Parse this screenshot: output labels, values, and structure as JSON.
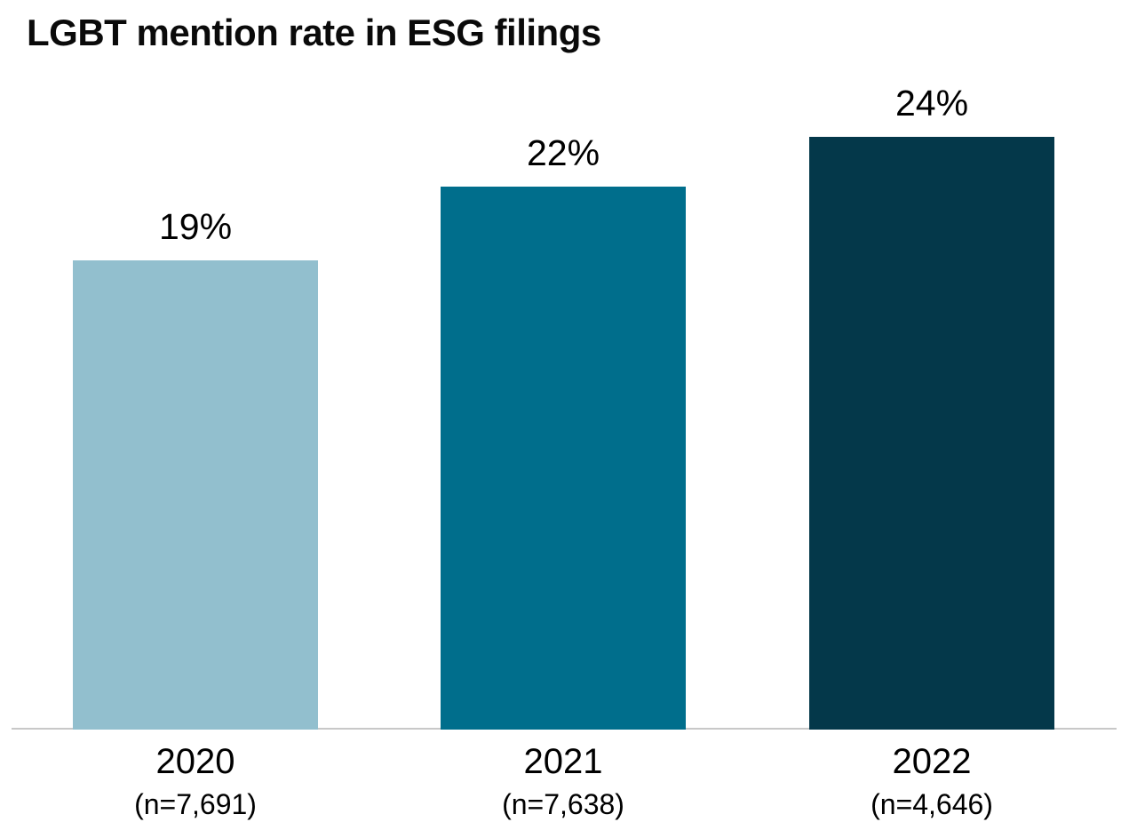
{
  "title": "LGBT mention rate in ESG filings",
  "chart_data": {
    "type": "bar",
    "title": "LGBT mention rate in ESG filings",
    "categories": [
      "2020",
      "2021",
      "2022"
    ],
    "values": [
      19,
      22,
      24
    ],
    "data_labels": [
      "19%",
      "22%",
      "24%"
    ],
    "sample_sizes": [
      "(n=7,691)",
      "(n=7,638)",
      "(n=4,646)"
    ],
    "bar_colors": [
      "#92BFCE",
      "#006E8C",
      "#04384A"
    ],
    "unit": "%",
    "ylim": [
      0,
      24
    ],
    "xlabel": "",
    "ylabel": "",
    "grid": false,
    "legend": false,
    "axis_line_color": "#C8C8C8"
  }
}
